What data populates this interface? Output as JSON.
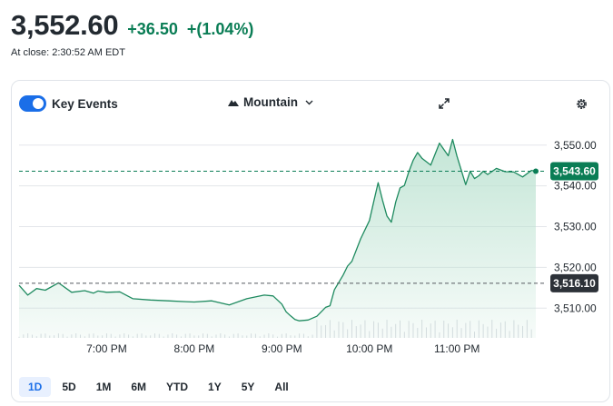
{
  "quote": {
    "price": "3,552.60",
    "change": "+36.50",
    "change_pct": "+(1.04%)",
    "close_label": "At close: 2:30:52 AM EDT"
  },
  "toolbar": {
    "key_events_label": "Key Events",
    "key_events_on": true,
    "chart_type_label": "Mountain",
    "icons": [
      "mountain-icon",
      "chevron-down-icon",
      "expand-icon",
      "gear-icon"
    ]
  },
  "ranges": [
    "1D",
    "5D",
    "1M",
    "6M",
    "YTD",
    "1Y",
    "5Y",
    "All"
  ],
  "active_range": "1D",
  "colors": {
    "up": "#0a7d55",
    "line": "#1e8a5f",
    "area_top": "#b9e1cf",
    "flag_last": "#0a7d55",
    "flag_ref": "#2c3138",
    "accent": "#1a6ee8"
  },
  "chart_data": {
    "type": "area",
    "x_ticks": [
      "7:00 PM",
      "8:00 PM",
      "9:00 PM",
      "10:00 PM",
      "11:00 PM"
    ],
    "y_ticks": [
      "3,550.00",
      "3,540.00",
      "3,530.00",
      "3,520.00",
      "3,510.00"
    ],
    "y_tick_values": [
      3550,
      3540,
      3530,
      3520,
      3510
    ],
    "ylim": [
      3502.7,
      3553.3
    ],
    "grid": "horizontal",
    "last_price": {
      "value": 3543.6,
      "label": "3,543.60"
    },
    "reference_price": {
      "value": 3516.1,
      "label": "3,516.10"
    },
    "series": [
      {
        "x_hours": [
          18.0,
          18.1,
          18.2,
          18.3,
          18.45,
          18.6,
          18.75,
          18.85,
          18.9,
          19.0,
          19.15,
          19.3,
          19.5,
          19.7,
          19.9,
          20.0,
          20.2,
          20.4,
          20.6,
          20.8,
          20.9,
          21.0,
          21.05,
          21.1,
          21.15,
          21.2,
          21.3,
          21.4,
          21.5,
          21.55,
          21.6,
          21.7,
          21.75,
          21.8,
          21.9,
          22.0,
          22.05,
          22.1,
          22.15,
          22.2,
          22.25,
          22.3,
          22.35,
          22.4,
          22.45,
          22.5,
          22.55,
          22.6,
          22.7,
          22.8,
          22.9,
          22.95,
          23.0,
          23.05,
          23.1,
          23.15,
          23.2,
          23.25,
          23.3,
          23.35,
          23.45,
          23.55,
          23.65,
          23.75,
          23.85,
          23.9
        ],
        "values": [
          3515.6,
          3513.2,
          3514.8,
          3514.4,
          3516.2,
          3513.9,
          3514.3,
          3513.7,
          3514.2,
          3513.9,
          3514.0,
          3512.3,
          3512.0,
          3511.8,
          3511.6,
          3511.5,
          3511.8,
          3510.8,
          3512.3,
          3513.2,
          3513.0,
          3511.0,
          3509.1,
          3508.1,
          3507.2,
          3506.9,
          3507.1,
          3508.0,
          3510.2,
          3510.6,
          3514.5,
          3518.1,
          3520.3,
          3521.5,
          3527.0,
          3531.5,
          3536.2,
          3540.8,
          3536.5,
          3532.6,
          3531.1,
          3536.0,
          3539.5,
          3540.1,
          3543.5,
          3546.3,
          3548.2,
          3546.8,
          3545.1,
          3550.5,
          3547.4,
          3551.4,
          3547.3,
          3543.8,
          3540.3,
          3543.6,
          3541.8,
          3542.5,
          3543.6,
          3542.8,
          3544.3,
          3543.5,
          3543.4,
          3542.2,
          3543.8,
          3543.6
        ]
      }
    ]
  }
}
